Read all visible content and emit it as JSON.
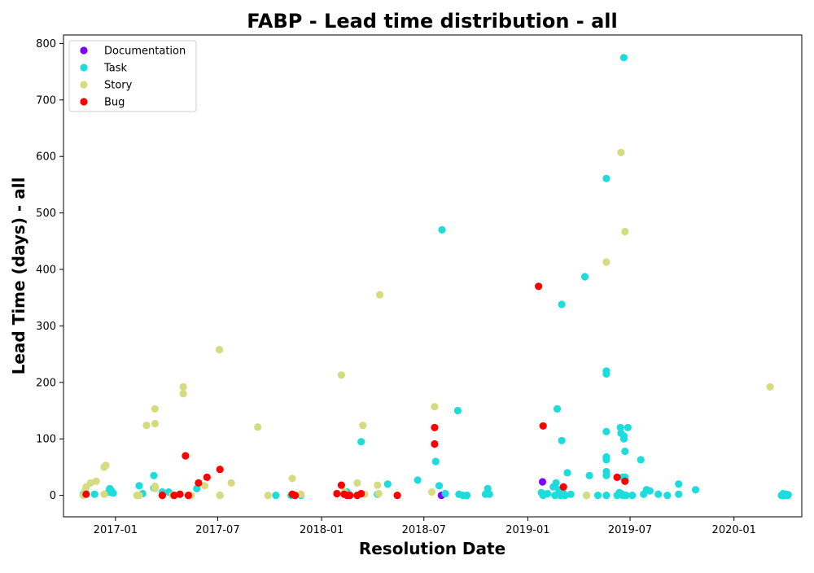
{
  "chart_data": {
    "type": "scatter",
    "title": "FABP - Lead time distribution - all",
    "xlabel": "Resolution Date",
    "ylabel": "Lead Time (days) - all",
    "x_range": [
      "2016-10-01",
      "2020-04-30"
    ],
    "ylim": [
      -38,
      815
    ],
    "x_ticks": [
      "2017-01",
      "2017-07",
      "2018-01",
      "2018-07",
      "2019-01",
      "2019-07",
      "2020-01"
    ],
    "x_tick_dates": [
      "2017-01-01",
      "2017-07-01",
      "2018-01-01",
      "2018-07-01",
      "2019-01-01",
      "2019-07-01",
      "2020-01-01"
    ],
    "y_ticks": [
      0,
      100,
      200,
      300,
      400,
      500,
      600,
      700,
      800
    ],
    "grid": false,
    "legend_position": "top-left",
    "series": [
      {
        "name": "Documentation",
        "color": "#8000ff",
        "points": [
          [
            "2018-08-01",
            0
          ],
          [
            "2019-01-27",
            24
          ]
        ]
      },
      {
        "name": "Task",
        "color": "#1cdcdc",
        "points": [
          [
            "2016-11-05",
            2
          ],
          [
            "2016-11-25",
            2
          ],
          [
            "2016-12-12",
            50
          ],
          [
            "2016-12-20",
            6
          ],
          [
            "2016-12-22",
            12
          ],
          [
            "2016-12-25",
            8
          ],
          [
            "2016-12-28",
            4
          ],
          [
            "2017-02-12",
            17
          ],
          [
            "2017-02-18",
            3
          ],
          [
            "2017-03-10",
            35
          ],
          [
            "2017-03-10",
            13
          ],
          [
            "2017-03-25",
            6
          ],
          [
            "2017-04-05",
            6
          ],
          [
            "2017-05-25",
            12
          ],
          [
            "2017-07-05",
            0
          ],
          [
            "2017-10-12",
            0
          ],
          [
            "2017-11-08",
            0
          ],
          [
            "2017-11-25",
            0
          ],
          [
            "2018-02-15",
            6
          ],
          [
            "2018-03-12",
            95
          ],
          [
            "2018-04-10",
            2
          ],
          [
            "2018-04-28",
            20
          ],
          [
            "2018-06-20",
            27
          ],
          [
            "2018-07-22",
            60
          ],
          [
            "2018-07-28",
            17
          ],
          [
            "2018-08-02",
            470
          ],
          [
            "2018-08-08",
            3
          ],
          [
            "2018-08-30",
            150
          ],
          [
            "2018-09-01",
            2
          ],
          [
            "2018-09-08",
            0
          ],
          [
            "2018-09-15",
            0
          ],
          [
            "2018-10-18",
            2
          ],
          [
            "2018-10-22",
            12
          ],
          [
            "2018-10-25",
            2
          ],
          [
            "2019-01-25",
            5
          ],
          [
            "2019-01-28",
            0
          ],
          [
            "2019-02-05",
            3
          ],
          [
            "2019-02-15",
            15
          ],
          [
            "2019-02-18",
            0
          ],
          [
            "2019-02-20",
            22
          ],
          [
            "2019-02-22",
            153
          ],
          [
            "2019-02-25",
            10
          ],
          [
            "2019-02-28",
            0
          ],
          [
            "2019-03-02",
            338
          ],
          [
            "2019-03-02",
            97
          ],
          [
            "2019-03-05",
            4
          ],
          [
            "2019-03-08",
            0
          ],
          [
            "2019-03-12",
            40
          ],
          [
            "2019-03-18",
            2
          ],
          [
            "2019-04-12",
            387
          ],
          [
            "2019-04-15",
            0
          ],
          [
            "2019-04-20",
            35
          ],
          [
            "2019-05-05",
            0
          ],
          [
            "2019-05-20",
            561
          ],
          [
            "2019-05-20",
            220
          ],
          [
            "2019-05-20",
            215
          ],
          [
            "2019-05-20",
            113
          ],
          [
            "2019-05-20",
            68
          ],
          [
            "2019-05-20",
            63
          ],
          [
            "2019-05-20",
            42
          ],
          [
            "2019-05-20",
            35
          ],
          [
            "2019-05-20",
            0
          ],
          [
            "2019-06-08",
            0
          ],
          [
            "2019-06-12",
            5
          ],
          [
            "2019-06-14",
            120
          ],
          [
            "2019-06-15",
            110
          ],
          [
            "2019-06-17",
            2
          ],
          [
            "2019-06-18",
            0
          ],
          [
            "2019-06-18",
            32
          ],
          [
            "2019-06-20",
            775
          ],
          [
            "2019-06-20",
            105
          ],
          [
            "2019-06-20",
            100
          ],
          [
            "2019-06-22",
            32
          ],
          [
            "2019-06-22",
            78
          ],
          [
            "2019-06-24",
            0
          ],
          [
            "2019-06-27",
            120
          ],
          [
            "2019-07-05",
            0
          ],
          [
            "2019-07-20",
            63
          ],
          [
            "2019-07-25",
            2
          ],
          [
            "2019-07-30",
            10
          ],
          [
            "2019-08-05",
            8
          ],
          [
            "2019-08-20",
            2
          ],
          [
            "2019-09-05",
            0
          ],
          [
            "2019-09-25",
            2
          ],
          [
            "2019-09-25",
            20
          ],
          [
            "2019-10-25",
            10
          ],
          [
            "2020-03-25",
            0
          ],
          [
            "2020-03-28",
            3
          ],
          [
            "2020-03-30",
            0
          ],
          [
            "2020-04-02",
            2
          ],
          [
            "2020-04-05",
            0
          ],
          [
            "2020-04-06",
            1
          ]
        ]
      },
      {
        "name": "Story",
        "color": "#d4dc7f",
        "points": [
          [
            "2016-11-05",
            0
          ],
          [
            "2016-11-08",
            8
          ],
          [
            "2016-11-10",
            15
          ],
          [
            "2016-11-18",
            22
          ],
          [
            "2016-11-28",
            25
          ],
          [
            "2016-12-12",
            2
          ],
          [
            "2016-12-12",
            50
          ],
          [
            "2016-12-15",
            53
          ],
          [
            "2017-02-08",
            0
          ],
          [
            "2017-02-12",
            0
          ],
          [
            "2017-02-25",
            124
          ],
          [
            "2017-03-12",
            153
          ],
          [
            "2017-03-12",
            127
          ],
          [
            "2017-03-12",
            16
          ],
          [
            "2017-03-12",
            12
          ],
          [
            "2017-04-12",
            0
          ],
          [
            "2017-05-01",
            192
          ],
          [
            "2017-05-01",
            180
          ],
          [
            "2017-05-15",
            0
          ],
          [
            "2017-06-08",
            17
          ],
          [
            "2017-07-04",
            258
          ],
          [
            "2017-07-05",
            0
          ],
          [
            "2017-07-25",
            22
          ],
          [
            "2017-09-10",
            121
          ],
          [
            "2017-09-28",
            0
          ],
          [
            "2017-11-10",
            30
          ],
          [
            "2017-11-25",
            2
          ],
          [
            "2018-02-05",
            213
          ],
          [
            "2018-02-10",
            6
          ],
          [
            "2018-03-05",
            22
          ],
          [
            "2018-03-15",
            124
          ],
          [
            "2018-03-18",
            2
          ],
          [
            "2018-04-10",
            18
          ],
          [
            "2018-04-12",
            3
          ],
          [
            "2018-04-14",
            355
          ],
          [
            "2018-07-15",
            6
          ],
          [
            "2018-07-20",
            157
          ],
          [
            "2019-04-15",
            0
          ],
          [
            "2019-05-20",
            413
          ],
          [
            "2019-06-15",
            607
          ],
          [
            "2019-06-22",
            467
          ],
          [
            "2020-03-05",
            192
          ]
        ]
      },
      {
        "name": "Bug",
        "color": "#ff0000",
        "points": [
          [
            "2016-11-10",
            2
          ],
          [
            "2017-03-25",
            0
          ],
          [
            "2017-04-15",
            0
          ],
          [
            "2017-04-25",
            2
          ],
          [
            "2017-05-05",
            70
          ],
          [
            "2017-05-10",
            0
          ],
          [
            "2017-05-28",
            22
          ],
          [
            "2017-06-12",
            32
          ],
          [
            "2017-07-05",
            46
          ],
          [
            "2017-11-10",
            2
          ],
          [
            "2017-11-15",
            0
          ],
          [
            "2018-01-28",
            3
          ],
          [
            "2018-02-05",
            18
          ],
          [
            "2018-02-10",
            2
          ],
          [
            "2018-02-15",
            0
          ],
          [
            "2018-02-20",
            0
          ],
          [
            "2018-03-05",
            0
          ],
          [
            "2018-03-12",
            3
          ],
          [
            "2018-05-15",
            0
          ],
          [
            "2018-07-20",
            120
          ],
          [
            "2018-07-20",
            91
          ],
          [
            "2019-01-20",
            370
          ],
          [
            "2019-01-28",
            123
          ],
          [
            "2019-03-05",
            15
          ],
          [
            "2019-06-08",
            32
          ],
          [
            "2019-06-22",
            25
          ]
        ]
      }
    ]
  }
}
